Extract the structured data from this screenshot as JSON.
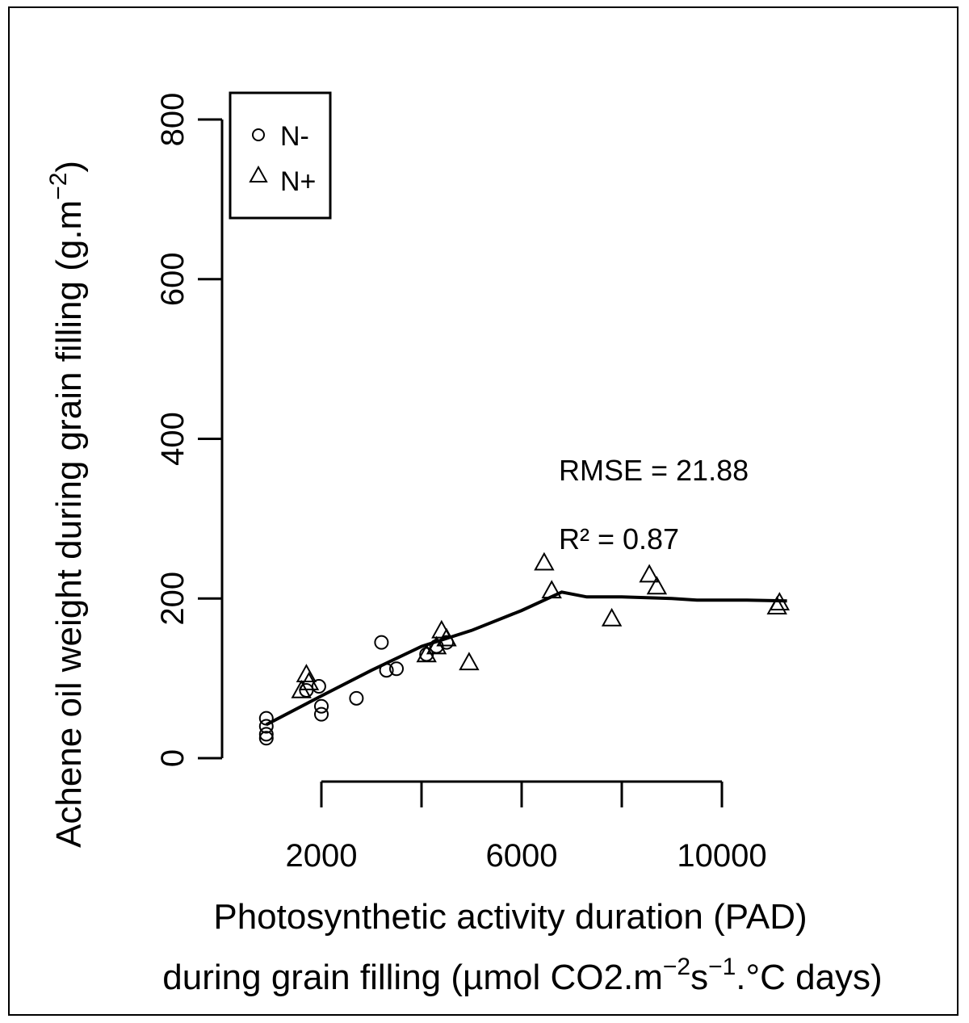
{
  "chart_data": {
    "type": "scatter",
    "xlabel_line1": "Photosynthetic activity duration (PAD)",
    "xlabel_line2_prefix": "during grain filling (µmol CO2.m",
    "xlabel_line2_sup1": "−2",
    "xlabel_line2_mid": "s",
    "xlabel_line2_sup2": "−1",
    "xlabel_line2_suffix": ".°C days)",
    "ylabel_prefix": "Achene oil weight during grain filling (g.m",
    "ylabel_sup": "−2",
    "ylabel_suffix": ")",
    "xlim": [
      0,
      12000
    ],
    "ylim": [
      0,
      800
    ],
    "x_ticks": [
      2000,
      4000,
      6000,
      8000,
      10000
    ],
    "x_tick_labels": [
      "2000",
      "",
      "6000",
      "",
      "10000"
    ],
    "y_ticks": [
      0,
      200,
      400,
      600,
      800
    ],
    "y_tick_labels": [
      "0",
      "200",
      "400",
      "600",
      "800"
    ],
    "legend": {
      "position": "top-left",
      "entries": [
        {
          "label": "N-",
          "marker": "circle"
        },
        {
          "label": "N+",
          "marker": "triangle"
        }
      ]
    },
    "annotations": {
      "rmse": "RMSE = 21.88",
      "r2": "R² = 0.87"
    },
    "series": [
      {
        "name": "N-",
        "marker": "circle",
        "points": [
          [
            900,
            50
          ],
          [
            900,
            40
          ],
          [
            900,
            30
          ],
          [
            900,
            25
          ],
          [
            1700,
            85
          ],
          [
            1950,
            90
          ],
          [
            2000,
            65
          ],
          [
            2000,
            55
          ],
          [
            2700,
            75
          ],
          [
            3200,
            145
          ],
          [
            3300,
            110
          ],
          [
            3500,
            112
          ],
          [
            4100,
            130
          ],
          [
            4300,
            140
          ],
          [
            4500,
            145
          ]
        ]
      },
      {
        "name": "N+",
        "marker": "triangle",
        "points": [
          [
            1600,
            85
          ],
          [
            1700,
            105
          ],
          [
            1750,
            95
          ],
          [
            4100,
            130
          ],
          [
            4300,
            140
          ],
          [
            4400,
            160
          ],
          [
            4500,
            150
          ],
          [
            4950,
            120
          ],
          [
            6450,
            245
          ],
          [
            6600,
            210
          ],
          [
            7800,
            175
          ],
          [
            8550,
            230
          ],
          [
            8700,
            215
          ],
          [
            11100,
            190
          ],
          [
            11150,
            195
          ]
        ]
      }
    ],
    "fit_line": [
      [
        900,
        42
      ],
      [
        2000,
        78
      ],
      [
        3000,
        110
      ],
      [
        4000,
        140
      ],
      [
        5000,
        160
      ],
      [
        6000,
        185
      ],
      [
        6800,
        208
      ],
      [
        7300,
        202
      ],
      [
        8000,
        202
      ],
      [
        9000,
        200
      ],
      [
        9500,
        198
      ],
      [
        10500,
        198
      ],
      [
        11300,
        197
      ]
    ]
  }
}
